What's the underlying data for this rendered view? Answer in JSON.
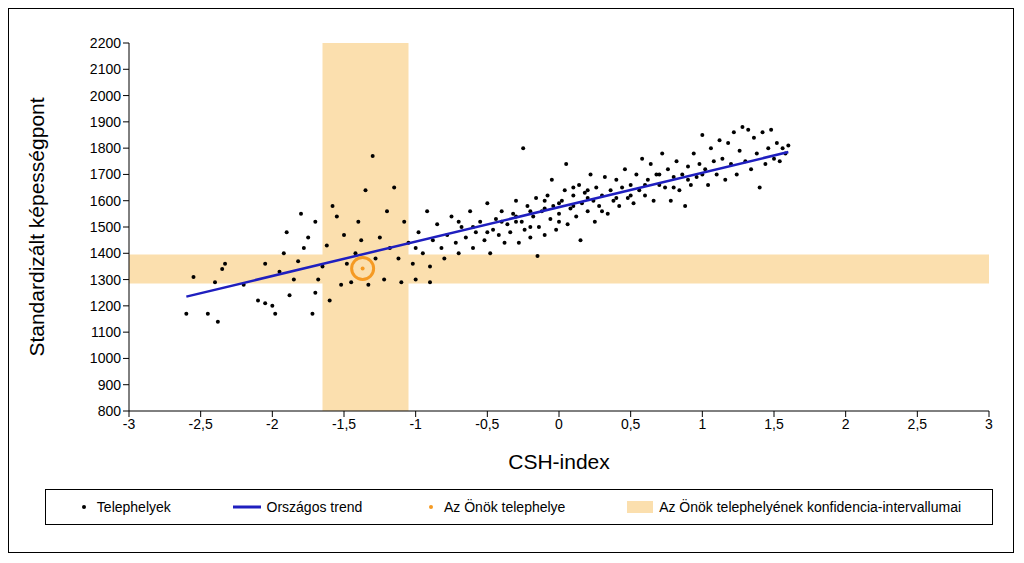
{
  "chart_data": {
    "type": "scatter",
    "x_label": "CSH-index",
    "y_label": "Standardizált képességpont",
    "xlim": [
      -3,
      3
    ],
    "xticks": [
      -3,
      {
        "value": -2.5,
        "label": "-2,5"
      },
      -2,
      {
        "value": -1.5,
        "label": "-1,5"
      },
      -1,
      {
        "value": -0.5,
        "label": "-0,5"
      },
      0,
      {
        "value": 0.5,
        "label": "0,5"
      },
      1,
      {
        "value": 1.5,
        "label": "1,5"
      },
      2,
      {
        "value": 2.5,
        "label": "2,5"
      },
      3
    ],
    "ylim": [
      800,
      2200
    ],
    "yticks": [
      800,
      900,
      1000,
      1100,
      1200,
      1300,
      1400,
      1500,
      1600,
      1700,
      1800,
      1900,
      2000,
      2100,
      2200
    ],
    "grid": false,
    "legend": "bottom",
    "series": [
      {
        "name": "Telephelyek",
        "type": "scatter",
        "marker": "circle",
        "color": "#000000",
        "x": [
          -2.6,
          -2.55,
          -2.45,
          -2.4,
          -2.38,
          -2.35,
          -2.33,
          -2.2,
          -2.1,
          -2.05,
          -2.05,
          -2.0,
          -1.98,
          -1.95,
          -1.92,
          -1.9,
          -1.88,
          -1.85,
          -1.82,
          -1.8,
          -1.78,
          -1.75,
          -1.72,
          -1.7,
          -1.7,
          -1.68,
          -1.65,
          -1.62,
          -1.6,
          -1.58,
          -1.55,
          -1.52,
          -1.5,
          -1.48,
          -1.45,
          -1.42,
          -1.4,
          -1.38,
          -1.35,
          -1.33,
          -1.3,
          -1.28,
          -1.25,
          -1.22,
          -1.2,
          -1.18,
          -1.15,
          -1.12,
          -1.1,
          -1.08,
          -1.05,
          -1.02,
          -1.0,
          -0.98,
          -0.95,
          -0.92,
          -0.9,
          -0.88,
          -0.85,
          -0.82,
          -0.8,
          -0.78,
          -0.75,
          -0.72,
          -0.7,
          -0.68,
          -0.65,
          -0.62,
          -0.6,
          -0.58,
          -0.55,
          -0.52,
          -0.5,
          -0.48,
          -0.46,
          -0.44,
          -0.42,
          -0.4,
          -0.38,
          -0.36,
          -0.34,
          -0.32,
          -0.3,
          -0.28,
          -0.26,
          -0.25,
          -0.24,
          -0.22,
          -0.2,
          -0.18,
          -0.16,
          -0.15,
          -0.14,
          -0.12,
          -0.1,
          -0.08,
          -0.06,
          -0.05,
          -0.04,
          -0.02,
          0.0,
          0.02,
          0.04,
          0.05,
          0.06,
          0.08,
          0.1,
          0.12,
          0.14,
          0.15,
          0.16,
          0.18,
          0.2,
          0.22,
          0.24,
          0.25,
          0.26,
          0.28,
          0.3,
          0.32,
          0.34,
          0.36,
          0.38,
          0.4,
          0.42,
          0.44,
          0.46,
          0.48,
          0.5,
          0.52,
          0.54,
          0.56,
          0.58,
          0.6,
          0.62,
          0.64,
          0.66,
          0.68,
          0.7,
          0.72,
          0.74,
          0.76,
          0.78,
          0.8,
          0.82,
          0.84,
          0.86,
          0.88,
          0.9,
          0.92,
          0.94,
          0.96,
          0.98,
          1.0,
          1.02,
          1.04,
          1.06,
          1.08,
          1.1,
          1.12,
          1.14,
          1.16,
          1.18,
          1.2,
          1.22,
          1.24,
          1.26,
          1.28,
          1.3,
          1.32,
          1.34,
          1.36,
          1.38,
          1.4,
          1.42,
          1.44,
          1.46,
          1.48,
          1.5,
          1.52,
          1.54,
          1.56,
          1.58,
          1.6,
          -0.3,
          -0.2,
          -0.1,
          0.0,
          0.1,
          0.2,
          -0.6,
          -0.5,
          -0.4,
          -0.3,
          -0.2,
          -0.1,
          0.0,
          0.1,
          0.2,
          0.3,
          0.4,
          0.5,
          0.6,
          0.7,
          0.8,
          0.9,
          1.0,
          -0.7,
          -0.9,
          -1.0
        ],
        "values": [
          1170,
          1310,
          1170,
          1290,
          1140,
          1340,
          1360,
          1280,
          1220,
          1210,
          1360,
          1200,
          1170,
          1330,
          1400,
          1480,
          1240,
          1300,
          1370,
          1550,
          1420,
          1460,
          1170,
          1520,
          1250,
          1300,
          1350,
          1430,
          1220,
          1580,
          1540,
          1280,
          1470,
          1360,
          1290,
          1400,
          1520,
          1450,
          1640,
          1280,
          1770,
          1380,
          1460,
          1300,
          1560,
          1420,
          1650,
          1380,
          1290,
          1520,
          1440,
          1360,
          1300,
          1480,
          1400,
          1560,
          1350,
          1450,
          1510,
          1420,
          1380,
          1470,
          1540,
          1440,
          1400,
          1500,
          1460,
          1560,
          1420,
          1480,
          1520,
          1450,
          1590,
          1400,
          1490,
          1530,
          1470,
          1560,
          1440,
          1510,
          1480,
          1550,
          1600,
          1440,
          1520,
          1800,
          1490,
          1580,
          1460,
          1540,
          1610,
          1390,
          1500,
          1560,
          1470,
          1620,
          1530,
          1680,
          1580,
          1490,
          1550,
          1600,
          1640,
          1740,
          1510,
          1570,
          1620,
          1540,
          1660,
          1450,
          1590,
          1630,
          1560,
          1700,
          1600,
          1520,
          1650,
          1580,
          1620,
          1690,
          1550,
          1640,
          1600,
          1680,
          1580,
          1650,
          1720,
          1610,
          1660,
          1590,
          1700,
          1640,
          1760,
          1620,
          1680,
          1740,
          1600,
          1700,
          1660,
          1780,
          1650,
          1720,
          1600,
          1690,
          1750,
          1640,
          1700,
          1580,
          1730,
          1660,
          1780,
          1690,
          1740,
          1850,
          1720,
          1660,
          1800,
          1750,
          1700,
          1830,
          1760,
          1680,
          1820,
          1740,
          1860,
          1700,
          1790,
          1880,
          1750,
          1870,
          1720,
          1840,
          1780,
          1650,
          1860,
          1740,
          1800,
          1870,
          1760,
          1820,
          1750,
          1800,
          1780,
          1810,
          1520,
          1560,
          1570,
          1590,
          1580,
          1610,
          1500,
          1480,
          1520,
          1540,
          1500,
          1600,
          1520,
          1650,
          1640,
          1560,
          1610,
          1620,
          1660,
          1700,
          1650,
          1680,
          1700,
          1520,
          1290,
          1420
        ]
      },
      {
        "name": "Országos trend",
        "type": "line",
        "line_style": "solid",
        "color": "#1f1fbf",
        "x": [
          -2.6,
          1.6
        ],
        "values": [
          1235,
          1785
        ]
      },
      {
        "name": "Az Önök telephelye",
        "type": "scatter",
        "marker": "ring",
        "color": "#f59a23",
        "x": [
          -1.37
        ],
        "values": [
          1342
        ]
      }
    ],
    "confidence_intervals": {
      "name": "Az Önök telephelyének konfidencia-intervallumai",
      "color": "#fbdfae",
      "x": [
        -1.65,
        -1.05
      ],
      "y": [
        1285,
        1395
      ]
    }
  }
}
